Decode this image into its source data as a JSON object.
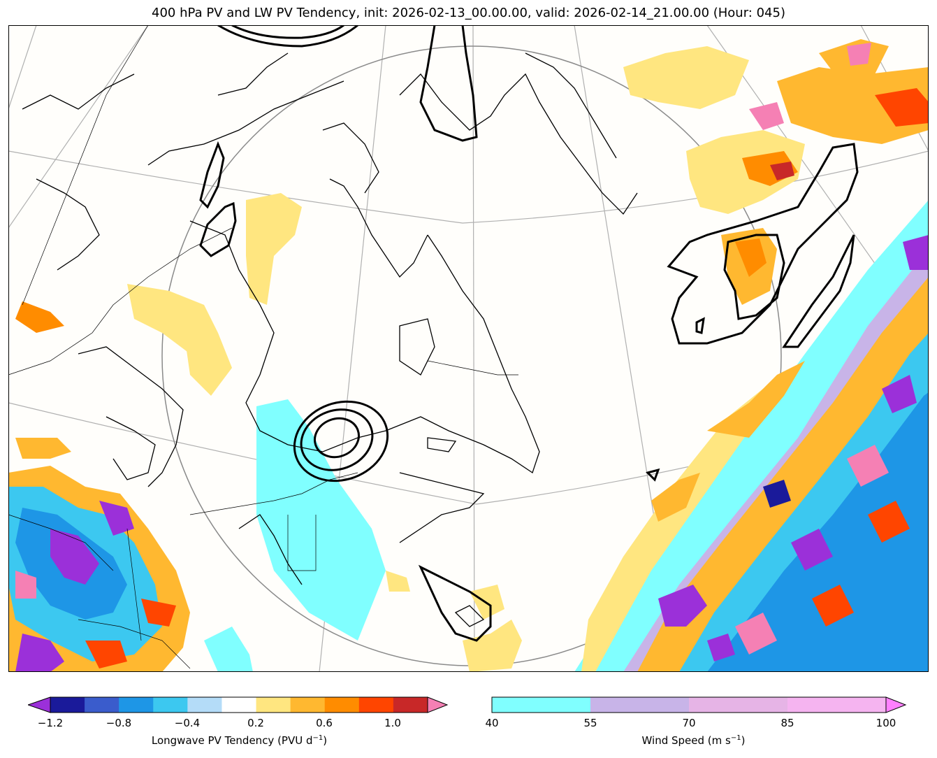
{
  "title": "400 hPa PV and LW PV Tendency, init: 2026-02-13_00.00.00, valid: 2026-02-14_21.00.00 (Hour: 045)",
  "pv_colorbar": {
    "label_main": "Longwave PV Tendency (PVU d",
    "label_sup": "−1",
    "label_end": ")",
    "ticks": [
      "−1.2",
      "−0.8",
      "−0.4",
      "0.2",
      "0.6",
      "1.0"
    ],
    "colors": [
      "#9b30d9",
      "#1a1a9a",
      "#3a5ccc",
      "#1e96e6",
      "#3cc8f0",
      "#b4dcf8",
      "#ffffff",
      "#ffe680",
      "#ffb830",
      "#ff8c00",
      "#ff4500",
      "#c82828",
      "#f580b4"
    ]
  },
  "wind_colorbar": {
    "label_main": "Wind Speed (m s",
    "label_sup": "−1",
    "label_end": ")",
    "ticks": [
      "40",
      "55",
      "70",
      "85",
      "100"
    ],
    "colors": [
      "#80ffff",
      "#c8b4e8",
      "#e6b4e6",
      "#f5b4f0",
      "#ff80ff"
    ]
  }
}
